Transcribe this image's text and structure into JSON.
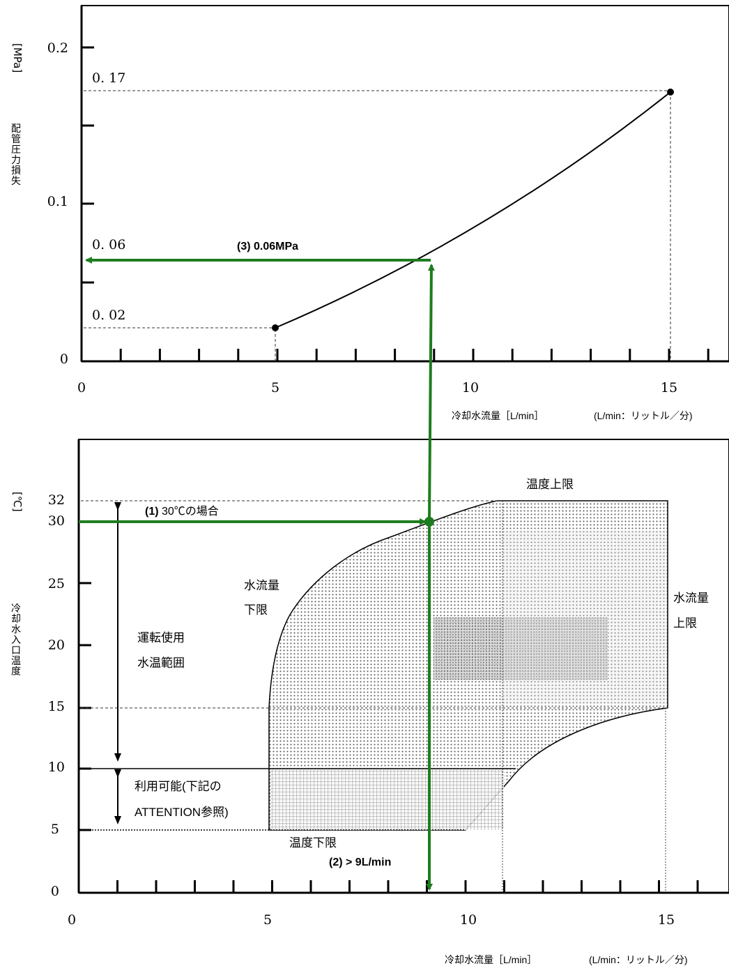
{
  "charts": [
    {
      "unit": "[MPa]",
      "ylabel": "配管圧力損失",
      "xlabel": "冷却水流量［L/min］",
      "xnote": "(L/min：リットル／分)",
      "x_ticks": [
        "0",
        "5",
        "10",
        "15"
      ],
      "y_ticks": [
        "0",
        "0.1",
        "0.2"
      ],
      "y_marks": [
        "0. 02",
        "0. 06",
        "0. 17"
      ],
      "annotation": "(3) 0.06MPa"
    },
    {
      "unit": "[℃]",
      "ylabel": "冷却水入口温度",
      "xlabel": "冷却水流量［L/min］",
      "xnote": "(L/min：リットル／分)",
      "x_ticks": [
        "0",
        "5",
        "10",
        "15"
      ],
      "y_ticks": [
        "0",
        "5",
        "10",
        "15",
        "20",
        "25",
        "30",
        "32"
      ],
      "labels": {
        "temp_upper": "温度上限",
        "temp_lower": "温度下限",
        "flow_lower": [
          "水流量",
          "下限"
        ],
        "flow_upper": [
          "水流量",
          "上限"
        ],
        "operating_range": [
          "運転使用",
          "水温範囲"
        ],
        "usable": [
          "利用可能(下記の",
          "ATTENTION参照)"
        ],
        "step1_num": "(1)",
        "step1_text": " 30℃の場合",
        "step2": "(2) > 9L/min"
      }
    }
  ],
  "colors": {
    "accent": "#1e7d1e",
    "axis": "#000000",
    "dashed": "#333333"
  },
  "chart_data": [
    {
      "type": "line",
      "title": "",
      "xlabel": "冷却水流量［L/min］",
      "ylabel": "配管圧力損失 [MPa]",
      "xlim": [
        0,
        16.5
      ],
      "ylim": [
        0,
        0.23
      ],
      "series": [
        {
          "x": [
            5,
            9,
            15
          ],
          "y": [
            0.02,
            0.06,
            0.17
          ]
        }
      ],
      "reference_points": [
        {
          "x": 5,
          "y": 0.02
        },
        {
          "x": 15,
          "y": 0.17
        }
      ],
      "annotation": {
        "text": "(3) 0.06MPa",
        "x": 9,
        "y": 0.06
      },
      "grid": false
    },
    {
      "type": "area",
      "title": "",
      "xlabel": "冷却水流量［L/min］",
      "ylabel": "冷却水入口温度 [℃]",
      "xlim": [
        0,
        16.5
      ],
      "ylim": [
        0,
        35
      ],
      "operating_region": {
        "flow_lower_curve": [
          [
            5,
            5
          ],
          [
            5,
            15
          ],
          [
            5.5,
            22.5
          ],
          [
            6.5,
            25.5
          ],
          [
            8,
            28.5
          ],
          [
            9,
            30
          ],
          [
            11,
            32
          ]
        ],
        "temp_upper": 32,
        "flow_upper": 15,
        "lower_right_curve": [
          [
            15,
            15
          ],
          [
            13,
            14
          ],
          [
            11.5,
            12
          ],
          [
            11,
            10.5
          ],
          [
            10,
            5
          ]
        ],
        "temp_lower": 5
      },
      "usable_band": {
        "ymin": 5,
        "ymax": 10
      },
      "operating_water_temp_range": {
        "ymin": 10,
        "ymax": 32
      },
      "example": {
        "temp": 30,
        "flow": 9
      },
      "grid": false
    }
  ]
}
